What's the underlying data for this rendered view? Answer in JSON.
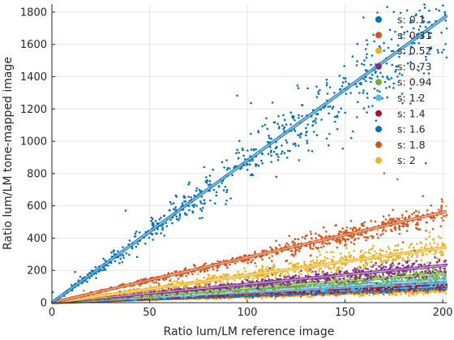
{
  "chart_data": {
    "type": "scatter",
    "title": "",
    "xlabel": "Ratio lum/LM reference image",
    "ylabel": "Ratio lum/LM tone-mapped image",
    "xlim": [
      0,
      202
    ],
    "ylim": [
      0,
      1850
    ],
    "xticks": [
      0,
      50,
      100,
      150,
      200
    ],
    "yticks": [
      0,
      200,
      400,
      600,
      800,
      1000,
      1200,
      1400,
      1600,
      1800
    ],
    "grid": true,
    "legend_position": "top-right",
    "series": [
      {
        "name": "s: 0.1",
        "color": "#0072BD",
        "slope": 8.8,
        "spread": 0.09,
        "outlier_rate": 0.02
      },
      {
        "name": "s: 0.31",
        "color": "#D95319",
        "slope": 2.8,
        "spread": 0.07,
        "outlier_rate": 0.02
      },
      {
        "name": "s: 0.52",
        "color": "#EDB120",
        "slope": 1.7,
        "spread": 0.12,
        "outlier_rate": 0.02
      },
      {
        "name": "s: 0.73",
        "color": "#7E2F8E",
        "slope": 1.15,
        "spread": 0.12,
        "outlier_rate": 0.01
      },
      {
        "name": "s: 0.94",
        "color": "#77AC30",
        "slope": 0.9,
        "spread": 0.12,
        "outlier_rate": 0.01
      },
      {
        "name": "s: 1.2",
        "color": "#4DBEEE",
        "slope": 0.7,
        "spread": 0.12,
        "outlier_rate": 0.01
      },
      {
        "name": "s: 1.4",
        "color": "#A2142F",
        "slope": 0.6,
        "spread": 0.12,
        "outlier_rate": 0.01
      },
      {
        "name": "s: 1.6",
        "color": "#0072BD",
        "slope": 0.5,
        "spread": 0.12,
        "outlier_rate": 0.01
      },
      {
        "name": "s: 1.8",
        "color": "#D95319",
        "slope": 0.45,
        "spread": 0.12,
        "outlier_rate": 0.01
      },
      {
        "name": "s: 2",
        "color": "#EDB120",
        "slope": 0.4,
        "spread": 0.14,
        "outlier_rate": 0.01
      }
    ]
  }
}
